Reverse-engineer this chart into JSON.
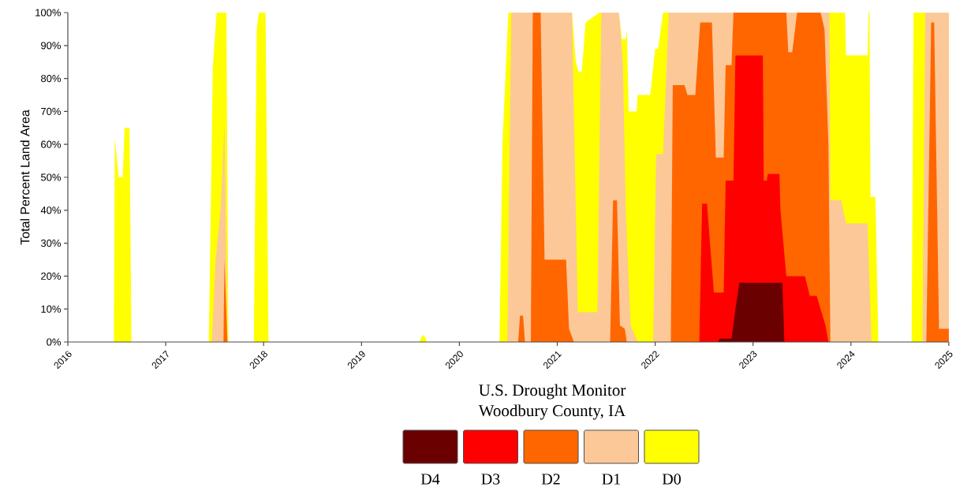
{
  "chart_data": {
    "type": "area",
    "title": "U.S. Drought Monitor",
    "subtitle": "Woodbury County, IA",
    "ylabel": "Total Percent Land Area",
    "xlim": [
      2016,
      2025
    ],
    "xticks": [
      2016,
      2017,
      2018,
      2019,
      2020,
      2021,
      2022,
      2023,
      2024,
      2025
    ],
    "ylim": [
      0,
      100
    ],
    "yticks": [
      {
        "value": 0,
        "label": "0%"
      },
      {
        "value": 10,
        "label": "10%"
      },
      {
        "value": 20,
        "label": "20%"
      },
      {
        "value": 30,
        "label": "30%"
      },
      {
        "value": 40,
        "label": "40%"
      },
      {
        "value": 50,
        "label": "50%"
      },
      {
        "value": 60,
        "label": "60%"
      },
      {
        "value": 70,
        "label": "70%"
      },
      {
        "value": 80,
        "label": "80%"
      },
      {
        "value": 90,
        "label": "90%"
      },
      {
        "value": 100,
        "label": "100%"
      }
    ],
    "legend": "bottom",
    "grid": false,
    "series": [
      {
        "name": "D4",
        "color": "#6b0000",
        "x": [
          2022.64,
          2022.66,
          2022.78,
          2022.82,
          2022.86,
          2023.3,
          2023.32
        ],
        "values": [
          0,
          1,
          1,
          10,
          18,
          18,
          0
        ]
      },
      {
        "name": "D3",
        "color": "#ff0000",
        "x": [
          2022.45,
          2022.48,
          2022.53,
          2022.56,
          2022.6,
          2022.7,
          2022.72,
          2022.8,
          2022.82,
          2023.1,
          2023.11,
          2023.14,
          2023.15,
          2023.27,
          2023.28,
          2023.34,
          2023.53,
          2023.58,
          2023.65,
          2023.69,
          2023.74,
          2023.77
        ],
        "values": [
          0,
          42,
          42,
          30,
          15,
          15,
          49,
          49,
          87,
          87,
          49,
          49,
          51,
          51,
          40,
          20,
          20,
          14,
          14,
          10,
          5,
          0
        ]
      },
      {
        "name": "D2",
        "color": "#ff6600",
        "x": [
          2017.59,
          2017.6,
          2017.63,
          2020.6,
          2020.62,
          2020.65,
          2020.67,
          2020.73,
          2020.75,
          2020.83,
          2020.87,
          2021.09,
          2021.12,
          2021.17,
          2021.54,
          2021.57,
          2021.61,
          2021.64,
          2021.69,
          2021.71,
          2022.16,
          2022.18,
          2022.3,
          2022.33,
          2022.41,
          2022.46,
          2022.58,
          2022.62,
          2022.7,
          2022.72,
          2022.78,
          2022.8,
          2023.34,
          2023.36,
          2023.4,
          2023.45,
          2023.69,
          2023.73,
          2023.77,
          2023.79,
          2024.77,
          2024.82,
          2024.85,
          2024.9,
          2025
        ],
        "values": [
          0,
          25,
          0,
          0,
          8,
          8,
          0,
          0,
          100,
          100,
          25,
          25,
          4,
          0,
          0,
          43,
          43,
          5,
          4,
          0,
          0,
          78,
          78,
          75,
          75,
          97,
          97,
          56,
          56,
          84,
          84,
          100,
          100,
          88,
          88,
          100,
          100,
          95,
          60,
          0,
          0,
          97,
          97,
          4,
          4
        ]
      },
      {
        "name": "D1",
        "color": "#fcc898",
        "x": [
          2017.47,
          2017.51,
          2017.56,
          2017.6,
          2017.63,
          2020.49,
          2020.53,
          2021.15,
          2021.21,
          2021.41,
          2021.45,
          2021.63,
          2021.67,
          2021.7,
          2021.75,
          2021.82,
          2021.98,
          2022.01,
          2022.08,
          2022.14,
          2023.78,
          2023.79,
          2023.9,
          2023.95,
          2024.17,
          2024.21,
          2024.73,
          2024.76,
          2025
        ],
        "values": [
          0,
          25,
          40,
          66,
          0,
          0,
          100,
          100,
          9,
          9,
          100,
          100,
          85,
          40,
          5,
          0,
          0,
          57,
          57,
          100,
          100,
          43,
          43,
          36,
          36,
          0,
          0,
          100,
          100
        ]
      },
      {
        "name": "D0",
        "color": "#ffff00",
        "x": [
          2016,
          2016.47,
          2016.48,
          2016.52,
          2016.56,
          2016.58,
          2016.63,
          2016.65,
          2017.44,
          2017.47,
          2017.48,
          2017.52,
          2017.62,
          2017.64,
          2017.9,
          2017.93,
          2017.95,
          2018.02,
          2018.05,
          2019.59,
          2019.62,
          2019.64,
          2019.67,
          2020.41,
          2020.44,
          2020.5,
          2021.15,
          2021.19,
          2021.22,
          2021.25,
          2021.29,
          2021.43,
          2021.63,
          2021.66,
          2021.7,
          2021.71,
          2021.73,
          2021.81,
          2021.82,
          2021.95,
          2022.0,
          2022.03,
          2022.08,
          2023.94,
          2023.95,
          2024.17,
          2024.18,
          2024.19,
          2024.2,
          2024.25,
          2024.28,
          2024.62,
          2024.64,
          2025
        ],
        "values": [
          0,
          0,
          62,
          50,
          50,
          65,
          65,
          0,
          0,
          60,
          83,
          100,
          100,
          0,
          0,
          95,
          100,
          100,
          0,
          0,
          2,
          2,
          0,
          0,
          60,
          100,
          100,
          85,
          82,
          82,
          97,
          100,
          100,
          92,
          92,
          95,
          70,
          70,
          75,
          75,
          89,
          89,
          100,
          100,
          87,
          87,
          100,
          100,
          44,
          44,
          0,
          0,
          100,
          100
        ]
      }
    ]
  }
}
